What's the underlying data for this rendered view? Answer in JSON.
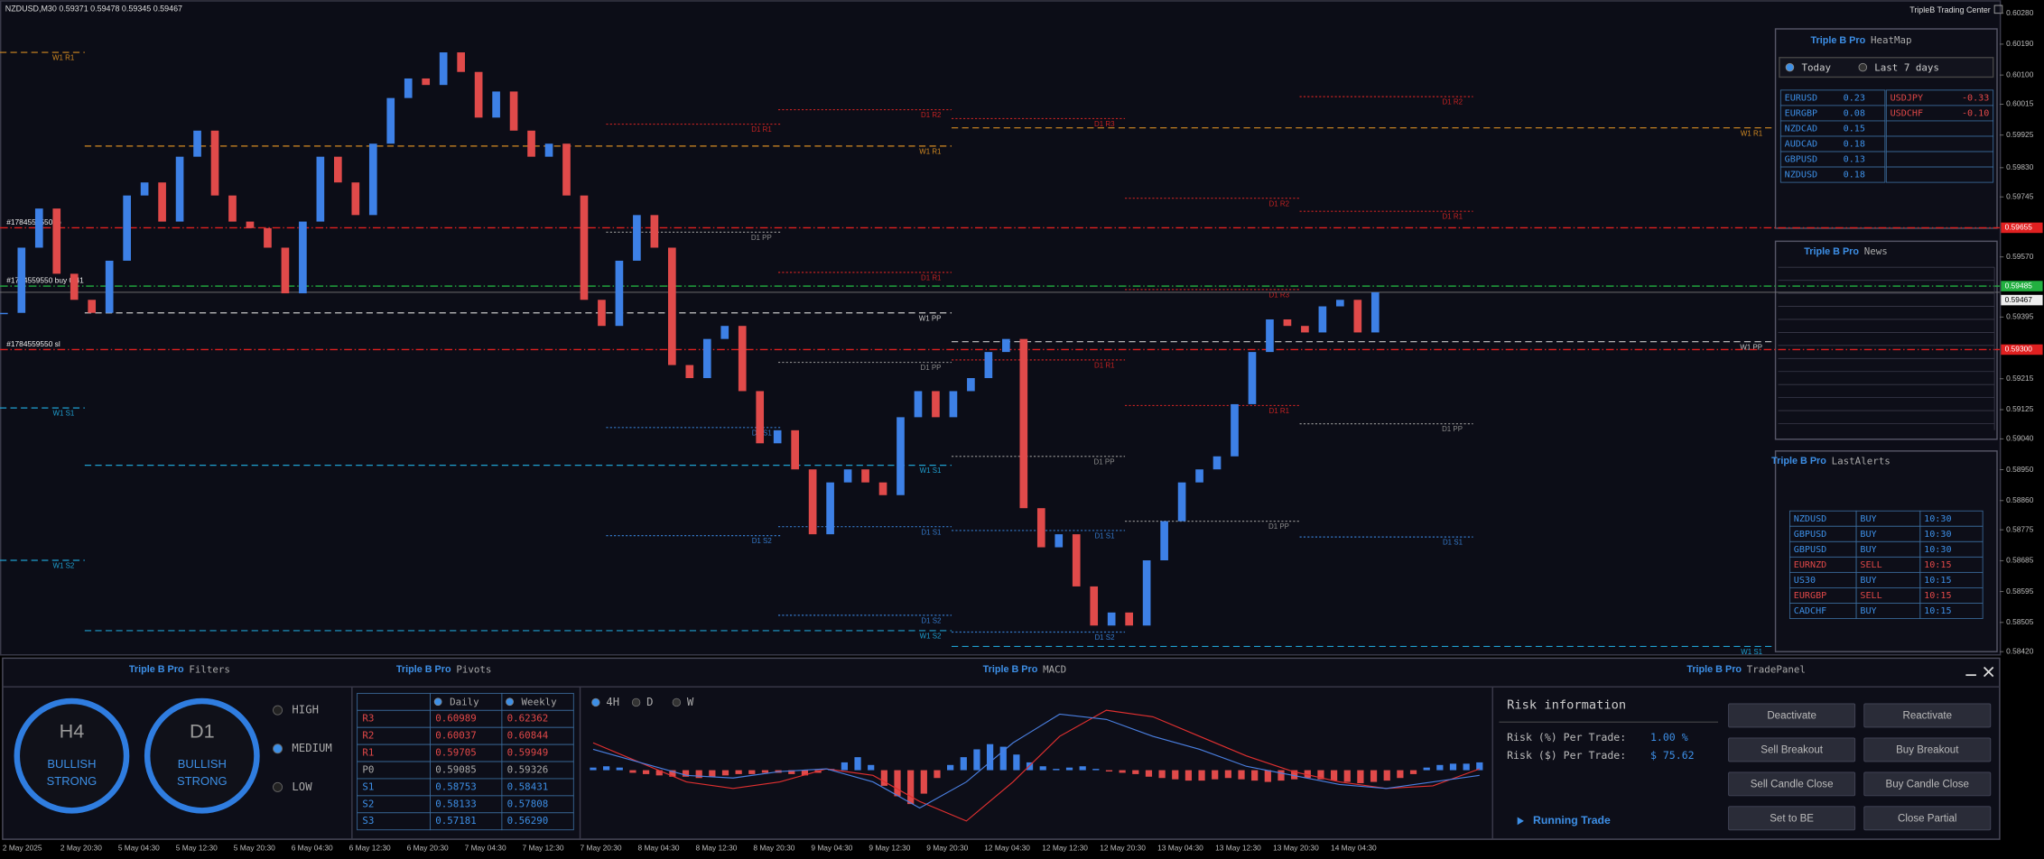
{
  "header": {
    "symbol_info": "NZDUSD,M30  0.59371 0.59478 0.59345 0.59467",
    "brand": "TripleB Trading Center"
  },
  "chart_data": {
    "type": "candlestick",
    "values": [
      0.59407,
      0.59597,
      0.59711,
      0.59521,
      0.59445,
      0.59407,
      0.59559,
      0.59749,
      0.59787,
      0.59673,
      0.59862,
      0.59938,
      0.59749,
      0.59673,
      0.59654,
      0.59597,
      0.59464,
      0.59673,
      0.59862,
      0.59787,
      0.59692,
      0.599,
      0.60033,
      0.6009,
      0.60071,
      0.60166,
      0.60109,
      0.59976,
      0.60052,
      0.59938,
      0.59862,
      0.599,
      0.59749,
      0.59445,
      0.59369,
      0.59559,
      0.59692,
      0.59597,
      0.59255,
      0.59217,
      0.59331,
      0.59369,
      0.59179,
      0.59027,
      0.59065,
      0.58951,
      0.58762,
      0.58913,
      0.58951,
      0.58913,
      0.58876,
      0.59103,
      0.59179,
      0.59103,
      0.59179,
      0.59217,
      0.59293,
      0.59331,
      0.58838,
      0.58724,
      0.58762,
      0.5861,
      0.58496,
      0.58534,
      0.58496,
      0.58686,
      0.588,
      0.58913,
      0.58951,
      0.58989,
      0.59141,
      0.59293,
      0.59388,
      0.59369,
      0.5935,
      0.59426,
      0.59445,
      0.5935,
      0.59467
    ],
    "up_color": "#3d80e6",
    "down_color": "#e04a4a",
    "ylim": [
      0.5842,
      0.6028
    ],
    "yticks": [
      {
        "value": 0.6028,
        "label": "0.60280"
      },
      {
        "value": 0.6019,
        "label": "0.60190"
      },
      {
        "value": 0.601,
        "label": "0.60100"
      },
      {
        "value": 0.60015,
        "label": "0.60015"
      },
      {
        "value": 0.59925,
        "label": "0.59925"
      },
      {
        "value": 0.5983,
        "label": "0.59830"
      },
      {
        "value": 0.59745,
        "label": "0.59745"
      },
      {
        "value": 0.5957,
        "label": "0.59570"
      },
      {
        "value": 0.59395,
        "label": "0.59395"
      },
      {
        "value": 0.59215,
        "label": "0.59215"
      },
      {
        "value": 0.59125,
        "label": "0.59125"
      },
      {
        "value": 0.5904,
        "label": "0.59040"
      },
      {
        "value": 0.5895,
        "label": "0.58950"
      },
      {
        "value": 0.5886,
        "label": "0.58860"
      },
      {
        "value": 0.58775,
        "label": "0.58775"
      },
      {
        "value": 0.58685,
        "label": "0.58685"
      },
      {
        "value": 0.58595,
        "label": "0.58595"
      },
      {
        "value": 0.58505,
        "label": "0.58505"
      },
      {
        "value": 0.5842,
        "label": "0.58420"
      }
    ],
    "time_labels": [
      "2 May 2025",
      "2 May 20:30",
      "5 May 04:30",
      "5 May 12:30",
      "5 May 20:30",
      "6 May 04:30",
      "6 May 12:30",
      "6 May 20:30",
      "7 May 04:30",
      "7 May 12:30",
      "7 May 20:30",
      "8 May 04:30",
      "8 May 12:30",
      "8 May 20:30",
      "9 May 04:30",
      "9 May 12:30",
      "9 May 20:30",
      "12 May 04:30",
      "12 May 12:30",
      "12 May 20:30",
      "13 May 04:30",
      "13 May 12:30",
      "13 May 20:30",
      "14 May 04:30"
    ],
    "levels": [
      {
        "style": "dashed",
        "items": [
          {
            "label": "W1 R1",
            "value": 0.60166,
            "color": "#d38a22"
          },
          {
            "label": "W1 S1",
            "value": 0.5913,
            "color": "#1f9fd0"
          },
          {
            "label": "W1 S2",
            "value": 0.58686,
            "color": "#1f9fd0"
          }
        ]
      },
      {
        "style": "dashed",
        "items": [
          {
            "label": "W1 R1",
            "value": 0.59893,
            "color": "#d38a22"
          },
          {
            "label": "W1 PP",
            "value": 0.59407,
            "color": "#c8c8c8"
          },
          {
            "label": "W1 S1",
            "value": 0.58963,
            "color": "#1f9fd0"
          },
          {
            "label": "W1 S2",
            "value": 0.58481,
            "color": "#1f9fd0"
          }
        ]
      },
      {
        "style": "dashed",
        "items": [
          {
            "label": "W1 R1",
            "value": 0.59946,
            "color": "#d38a22"
          },
          {
            "label": "W1 PP",
            "value": 0.59323,
            "color": "#c8c8c8"
          },
          {
            "label": "W1 S1",
            "value": 0.58435,
            "color": "#1f9fd0"
          }
        ]
      },
      {
        "style": "dotted",
        "items": [
          {
            "label": "D1 R1",
            "value": 0.59957,
            "color": "#c42222"
          },
          {
            "label": "D1 PP",
            "value": 0.59642,
            "color": "#8a8a8a"
          },
          {
            "label": "D1 S1",
            "value": 0.59073,
            "color": "#3478c8"
          },
          {
            "label": "D1 S2",
            "value": 0.58758,
            "color": "#3478c8"
          }
        ]
      },
      {
        "style": "dotted",
        "items": [
          {
            "label": "D1 R2",
            "value": 0.59999,
            "color": "#c42222"
          },
          {
            "label": "D1 R1",
            "value": 0.59525,
            "color": "#c42222"
          },
          {
            "label": "D1 PP",
            "value": 0.59263,
            "color": "#8a8a8a"
          },
          {
            "label": "D1 S1",
            "value": 0.58784,
            "color": "#3478c8"
          },
          {
            "label": "D1 S2",
            "value": 0.58526,
            "color": "#3478c8"
          }
        ]
      },
      {
        "style": "dotted",
        "items": [
          {
            "label": "D1 R3",
            "value": 0.59973,
            "color": "#c42222"
          },
          {
            "label": "D1 R1",
            "value": 0.5927,
            "color": "#c42222"
          },
          {
            "label": "D1 PP",
            "value": 0.58989,
            "color": "#8a8a8a"
          },
          {
            "label": "D1 S1",
            "value": 0.58773,
            "color": "#3478c8"
          },
          {
            "label": "D1 S2",
            "value": 0.58477,
            "color": "#3478c8"
          }
        ]
      },
      {
        "style": "dotted",
        "items": [
          {
            "label": "D1 R2",
            "value": 0.59741,
            "color": "#c42222"
          },
          {
            "label": "D1 R3",
            "value": 0.59475,
            "color": "#c42222"
          },
          {
            "label": "D1 R1",
            "value": 0.59137,
            "color": "#c42222"
          },
          {
            "label": "D1 PP",
            "value": 0.588,
            "color": "#8a8a8a"
          }
        ]
      },
      {
        "style": "dotted",
        "items": [
          {
            "label": "D1 R2",
            "value": 0.60037,
            "color": "#c42222"
          },
          {
            "label": "D1 R1",
            "value": 0.59703,
            "color": "#c42222"
          },
          {
            "label": "D1 PP",
            "value": 0.59084,
            "color": "#8a8a8a"
          },
          {
            "label": "D1 S1",
            "value": 0.58754,
            "color": "#3478c8"
          }
        ]
      }
    ],
    "trades": [
      {
        "label": "#1784559550 tp",
        "value": 0.59655,
        "value_label": "0.59655",
        "color": "#e02020"
      },
      {
        "label": "#1784559550 buy 0.41",
        "value": 0.59485,
        "value_label": "0.59485",
        "color": "#22b040"
      },
      {
        "label": "#1784559550 sl",
        "value": 0.593,
        "value_label": "0.59300",
        "color": "#e02020"
      }
    ],
    "bid": {
      "value": 0.59467,
      "value_label": "0.59467"
    }
  },
  "heatmap": {
    "brand": "Triple B Pro",
    "title": "HeatMap",
    "options": [
      "Today",
      "Last 7 days"
    ],
    "selected": 0,
    "strong": [
      [
        "EURUSD",
        "0.23"
      ],
      [
        "EURGBP",
        "0.08"
      ],
      [
        "NZDCAD",
        "0.15"
      ],
      [
        "AUDCAD",
        "0.18"
      ],
      [
        "GBPUSD",
        "0.13"
      ],
      [
        "NZDUSD",
        "0.18"
      ]
    ],
    "weak": [
      [
        "USDJPY",
        "-0.33"
      ],
      [
        "USDCHF",
        "-0.10"
      ]
    ]
  },
  "news": {
    "brand": "Triple B Pro",
    "title": "News"
  },
  "alerts": {
    "brand": "Triple B Pro",
    "title": "LastAlerts",
    "rows": [
      {
        "cells": [
          "NZDUSD",
          "BUY",
          "10:30"
        ],
        "color": "#3d8fe6"
      },
      {
        "cells": [
          "GBPUSD",
          "BUY",
          "10:30"
        ],
        "color": "#3d8fe6"
      },
      {
        "cells": [
          "GBPUSD",
          "BUY",
          "10:30"
        ],
        "color": "#3d8fe6"
      },
      {
        "cells": [
          "EURNZD",
          "SELL",
          "10:15"
        ],
        "color": "#e04848"
      },
      {
        "cells": [
          "US30",
          "BUY",
          "10:15"
        ],
        "color": "#3d8fe6"
      },
      {
        "cells": [
          "EURGBP",
          "SELL",
          "10:15"
        ],
        "color": "#e04848"
      },
      {
        "cells": [
          "CADCHF",
          "BUY",
          "10:15"
        ],
        "color": "#3d8fe6"
      }
    ]
  },
  "filters": {
    "brand": "Triple B Pro",
    "title": "Filters",
    "gauges": [
      {
        "tf": "H4",
        "status": [
          "BULLISH",
          "STRONG"
        ]
      },
      {
        "tf": "D1",
        "status": [
          "BULLISH",
          "STRONG"
        ]
      }
    ],
    "levels": [
      "HIGH",
      "MEDIUM",
      "LOW"
    ],
    "selected": 1
  },
  "pivots": {
    "brand": "Triple B Pro",
    "title": "Pivots",
    "columns": [
      "Daily",
      "Weekly"
    ],
    "rows": [
      {
        "cells": [
          "R3",
          "0.60989",
          "0.62362"
        ],
        "color": "#e04848"
      },
      {
        "cells": [
          "R2",
          "0.60037",
          "0.60844"
        ],
        "color": "#e04848"
      },
      {
        "cells": [
          "R1",
          "0.59705",
          "0.59949"
        ],
        "color": "#e04848"
      },
      {
        "cells": [
          "P0",
          "0.59085",
          "0.59326"
        ],
        "color": "#a8a8a8"
      },
      {
        "cells": [
          "S1",
          "0.58753",
          "0.58431"
        ],
        "color": "#3d8fe6"
      },
      {
        "cells": [
          "S2",
          "0.58133",
          "0.57808"
        ],
        "color": "#3d8fe6"
      },
      {
        "cells": [
          "S3",
          "0.57181",
          "0.56290"
        ],
        "color": "#3d8fe6"
      }
    ]
  },
  "macd": {
    "brand": "Triple B Pro",
    "title": "MACD",
    "timeframes": [
      "4H",
      "D",
      "W"
    ],
    "selected": 0,
    "up_color": "#3d80e6",
    "down_color": "#e04a4a",
    "macd_color": "#e03030",
    "signal_color": "#4a7fe0",
    "histogram": [
      2,
      3,
      2,
      -2,
      -3,
      -4,
      -5,
      -5,
      -6,
      -5,
      -4,
      -3,
      -3,
      -2,
      -2,
      -3,
      -4,
      -2,
      1,
      6,
      10,
      4,
      -12,
      -20,
      -26,
      -18,
      -6,
      4,
      10,
      16,
      20,
      18,
      12,
      6,
      3,
      1,
      2,
      3,
      1,
      -1,
      -2,
      -3,
      -5,
      -6,
      -7,
      -8,
      -8,
      -7,
      -6,
      -7,
      -8,
      -9,
      -8,
      -7,
      -6,
      -7,
      -8,
      -9,
      -10,
      -9,
      -8,
      -6,
      -3,
      2,
      4,
      5,
      5,
      6
    ],
    "macd_line": [
      21,
      6,
      -9,
      -14,
      -9,
      1,
      -4,
      -24,
      -39,
      -9,
      26,
      46,
      41,
      26,
      11,
      -1,
      -9,
      -14,
      -12,
      1
    ],
    "signal_line": [
      16,
      6,
      -4,
      -6,
      -1,
      1,
      -9,
      -29,
      -9,
      21,
      43,
      39,
      26,
      16,
      3,
      -4,
      -11,
      -14,
      -9,
      -4
    ]
  },
  "trade_panel": {
    "brand": "Triple B Pro",
    "title": "TradePanel",
    "risk_title": "Risk information",
    "risk_pct_label": "Risk (%) Per Trade:",
    "risk_pct": "1.00 %",
    "risk_usd_label": "Risk ($) Per Trade:",
    "risk_usd": "$ 75.62",
    "running": "Running Trade",
    "buttons": [
      "Deactivate",
      "Reactivate",
      "Sell Breakout",
      "Buy Breakout",
      "Sell Candle Close",
      "Buy Candle Close",
      "Set to BE",
      "Close Partial"
    ]
  }
}
